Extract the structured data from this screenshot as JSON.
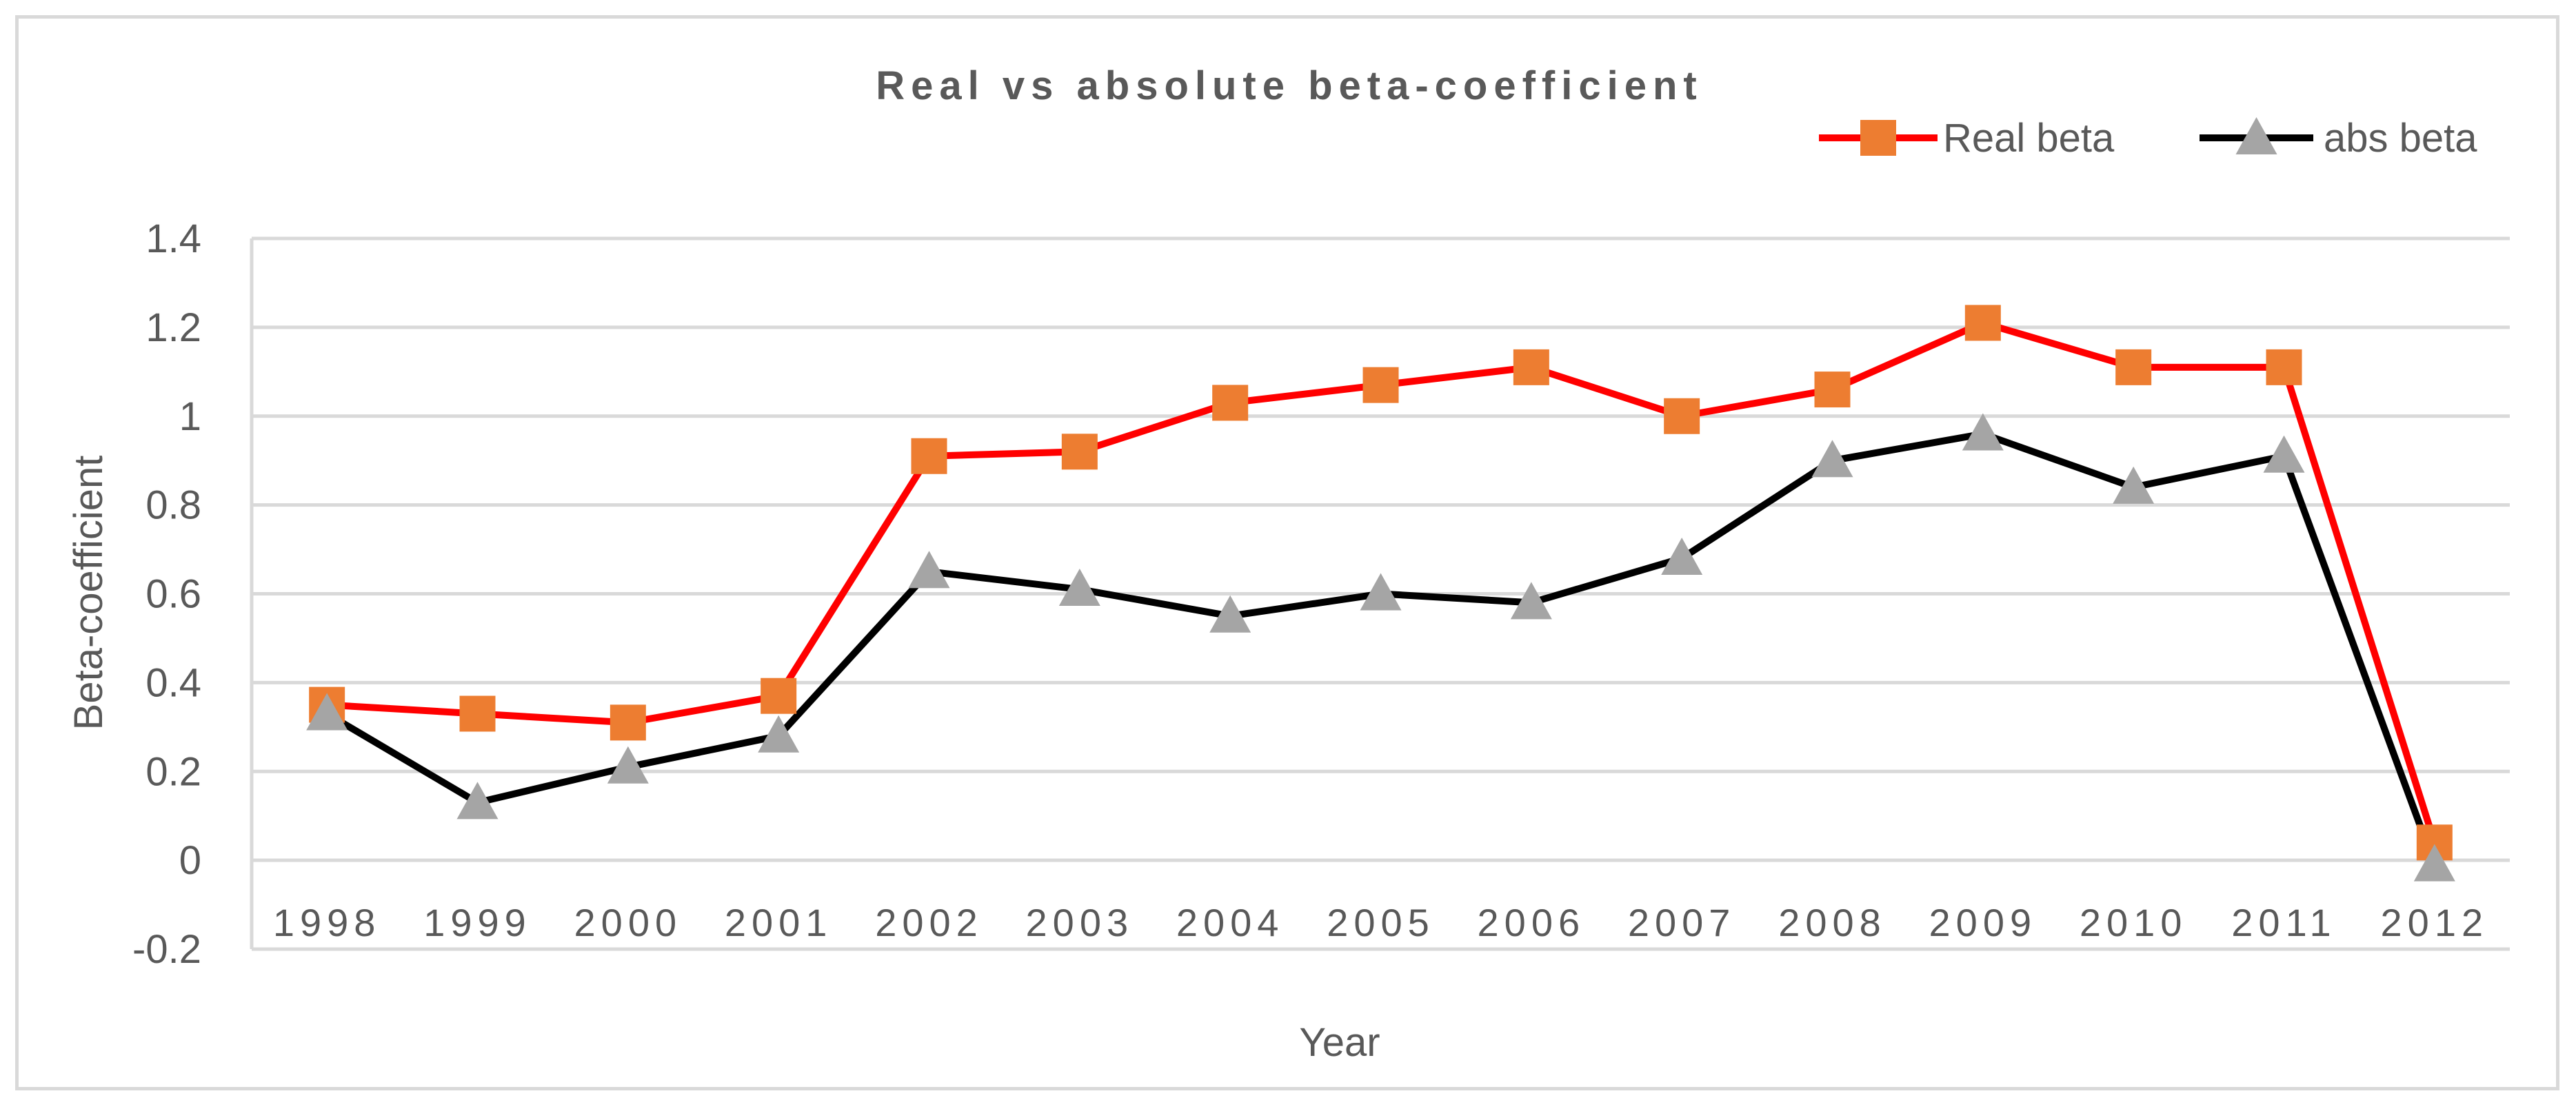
{
  "chart_data": {
    "type": "line",
    "title": "Real vs absolute beta-coefficient",
    "xlabel": "Year",
    "ylabel": "Beta-coefficient",
    "categories": [
      "1998",
      "1999",
      "2000",
      "2001",
      "2002",
      "2003",
      "2004",
      "2005",
      "2006",
      "2007",
      "2008",
      "2009",
      "2010",
      "2011",
      "2012"
    ],
    "ylim": [
      -0.2,
      1.4
    ],
    "yticks": [
      "1.4",
      "1.2",
      "1",
      "0.8",
      "0.6",
      "0.4",
      "0.2",
      "0",
      "-0.2"
    ],
    "ytick_values": [
      1.4,
      1.2,
      1.0,
      0.8,
      0.6,
      0.4,
      0.2,
      0,
      -0.2
    ],
    "grid": true,
    "legend_position": "top-right",
    "series": [
      {
        "name": "Real beta",
        "line_color": "#ff0000",
        "marker": "square",
        "marker_color": "#ed7d31",
        "values": [
          0.35,
          0.33,
          0.31,
          0.37,
          0.91,
          0.92,
          1.03,
          1.07,
          1.11,
          1.0,
          1.06,
          1.21,
          1.11,
          1.11,
          0.04
        ]
      },
      {
        "name": "abs beta",
        "line_color": "#000000",
        "marker": "triangle",
        "marker_color": "#a5a5a5",
        "values": [
          0.33,
          0.13,
          0.21,
          0.28,
          0.65,
          0.61,
          0.55,
          0.6,
          0.58,
          0.68,
          0.9,
          0.96,
          0.84,
          0.91,
          -0.01
        ]
      }
    ]
  }
}
